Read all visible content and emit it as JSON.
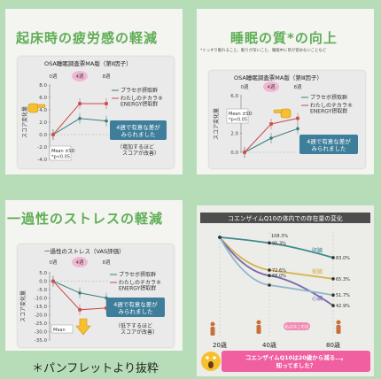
{
  "panels": [
    {
      "title": "起床時の疲労感の軽減",
      "chart_data": {
        "type": "line",
        "title": "OSA睡眠調査票MA版（第Ⅱ因子）",
        "ylabel": "スコア変化量",
        "weeks": [
          "0週",
          "4週",
          "8週"
        ],
        "y_ticks": [
          "8.0",
          "6.0",
          "4.0",
          "2.0",
          "0.0",
          "-2.0",
          "-4.0"
        ],
        "series": [
          {
            "name": "プラセボ摂取群",
            "values": [
              0.0,
              2.6,
              2.2
            ],
            "color": "#3a7d7a"
          },
          {
            "name": "わたしのチカラ® ENERGY摂取群",
            "values": [
              0.0,
              5.0,
              5.0
            ],
            "color": "#c94b4b"
          }
        ],
        "callout": "4週で有意な差がみられました",
        "note": "（増加するほど スコアが改善）",
        "stats": "Mean ±SD, *p<0.05",
        "ylim": [
          -4,
          8
        ]
      }
    },
    {
      "title": "睡眠の質*の向上",
      "subtitle": "*ぐっすり眠れること、眠りが深いこと、睡眠中に目が覚めないことなど",
      "chart_data": {
        "type": "line",
        "title": "OSA睡眠調査票MA版（第Ⅲ因子）",
        "ylabel": "スコア変化量",
        "weeks": [
          "0週",
          "4週",
          "8週"
        ],
        "y_ticks": [
          "6.0",
          "4.0",
          "2.0",
          "0.0"
        ],
        "series": [
          {
            "name": "プラセボ摂取群",
            "values": [
              0.0,
              1.5,
              2.5
            ],
            "color": "#3a7d7a"
          },
          {
            "name": "わたしのチカラ® ENERGY摂取群",
            "values": [
              0.0,
              3.0,
              3.6
            ],
            "color": "#c94b4b"
          }
        ],
        "callout": "4週で有意な差がみられました",
        "stats": "Mean ±SD, *p<0.05",
        "ylim": [
          0,
          6
        ]
      }
    },
    {
      "title": "一過性のストレスの軽減",
      "chart_data": {
        "type": "line",
        "title": "一過性のストレス（VAS評価）",
        "ylabel": "スコア変化量",
        "weeks": [
          "0週",
          "4週",
          "8週"
        ],
        "y_ticks": [
          "5.0",
          "0.0",
          "-5.0",
          "-10.0",
          "-15.0",
          "-20.0",
          "-25.0",
          "-30.0",
          "-35.0"
        ],
        "series": [
          {
            "name": "プラセボ摂取群",
            "values": [
              0.0,
              -7.0,
              -10.0
            ],
            "color": "#3a7d7a"
          },
          {
            "name": "わたしのチカラ® ENERGY摂取群",
            "values": [
              0.0,
              -17.0,
              -16.0
            ],
            "color": "#c94b4b"
          }
        ],
        "callout": "4週で有意な差がみられました",
        "note": "（低下するほど スコアが改善）",
        "stats": "Mean",
        "ylim": [
          -35,
          5
        ]
      }
    },
    {
      "title": "コエンザイムQ10の体内での存在量の変化",
      "chart_data": {
        "type": "line",
        "x": [
          "20歳",
          "40歳",
          "80歳"
        ],
        "series": [
          {
            "name": "肝臓",
            "values": [
              100,
              95.3,
              83.0
            ],
            "labels": [
              "100%",
              "95.3%",
              "83.0%"
            ],
            "color": "#3c8a8c"
          },
          {
            "name": "腎臓",
            "values": [
              100,
              72.6,
              65.3
            ],
            "labels": [
              "100%",
              "72.6%",
              "65.3%"
            ],
            "color": "#d6b24a"
          },
          {
            "name": "心臓",
            "values": [
              100,
              68.0,
              42.9
            ],
            "labels": [
              "100%",
              "68.0%",
              "42.9%"
            ],
            "color": "#7a6ab0"
          },
          {
            "name": "",
            "values": [
              100,
              60.0,
              51.7
            ],
            "labels": [
              "100%",
              "",
              "51.7%"
            ],
            "color": "#8fb6c8"
          }
        ],
        "label_104": "108.3%",
        "age_marker": "私は今この辺",
        "banner": "コエンザイムQ10は20歳から減る…。知ってました？"
      }
    }
  ],
  "footer": "＊パンフレットより抜粋"
}
